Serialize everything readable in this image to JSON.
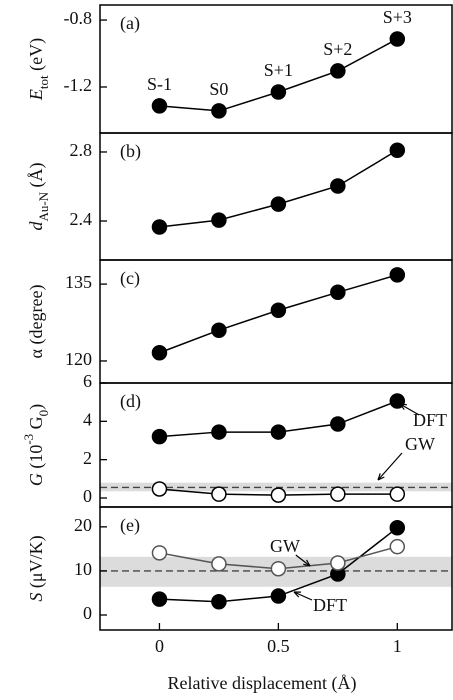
{
  "chart_data": [
    {
      "type": "line",
      "panel_label": "(a)",
      "ylabel": [
        {
          "text": "E",
          "style": "italic"
        },
        {
          "text": "tot",
          "style": "sub"
        },
        {
          "text": " (eV)"
        }
      ],
      "x": [
        0,
        0.25,
        0.5,
        0.75,
        1
      ],
      "xlim": [
        -0.25,
        1.23
      ],
      "ylim": [
        -1.475,
        -0.71
      ],
      "yticks": [
        -1.2,
        -0.8
      ],
      "point_labels": [
        "S-1",
        "S0",
        "S+1",
        "S+2",
        "S+3"
      ],
      "series": [
        {
          "color": "#000000",
          "marker": "filled",
          "values": [
            -1.313,
            -1.343,
            -1.23,
            -1.104,
            -0.913
          ]
        }
      ]
    },
    {
      "type": "line",
      "panel_label": "(b)",
      "ylabel": [
        {
          "text": "d",
          "style": "italic"
        },
        {
          "text": "Au-N",
          "style": "sub"
        },
        {
          "text": " (Å)"
        }
      ],
      "x": [
        0,
        0.25,
        0.5,
        0.75,
        1
      ],
      "xlim": [
        -0.25,
        1.23
      ],
      "ylim": [
        2.174,
        2.91
      ],
      "yticks": [
        2.4,
        2.8
      ],
      "series": [
        {
          "color": "#000000",
          "marker": "filled",
          "values": [
            2.365,
            2.405,
            2.498,
            2.603,
            2.81
          ]
        }
      ]
    },
    {
      "type": "line",
      "panel_label": "(c)",
      "ylabel": [
        {
          "text": "α (degree)"
        }
      ],
      "x": [
        0,
        0.25,
        0.5,
        0.75,
        1
      ],
      "xlim": [
        -0.25,
        1.23
      ],
      "ylim": [
        115.7,
        139.7
      ],
      "yticks": [
        120,
        135
      ],
      "series": [
        {
          "color": "#000000",
          "marker": "filled",
          "values": [
            121.6,
            126.0,
            129.9,
            133.4,
            136.8
          ]
        }
      ]
    },
    {
      "type": "line",
      "panel_label": "(d)",
      "ylabel": [
        {
          "text": "G",
          "style": "italic"
        },
        {
          "text": " (10"
        },
        {
          "text": "-3",
          "style": "sup"
        },
        {
          "text": " G"
        },
        {
          "text": "0",
          "style": "sub"
        },
        {
          "text": ")"
        }
      ],
      "x": [
        0,
        0.25,
        0.5,
        0.75,
        1
      ],
      "xlim": [
        -0.25,
        1.23
      ],
      "ylim": [
        -0.47,
        6
      ],
      "yticks": [
        0,
        2,
        4,
        6
      ],
      "band": [
        0.35,
        0.8
      ],
      "hline": 0.55,
      "series": [
        {
          "name": "DFT",
          "color": "#000000",
          "marker": "filled",
          "values": [
            3.2,
            3.44,
            3.44,
            3.86,
            5.06
          ]
        },
        {
          "name": "GW",
          "color": "#000000",
          "marker": "open",
          "values": [
            0.47,
            0.2,
            0.15,
            0.2,
            0.2
          ]
        }
      ]
    },
    {
      "type": "line",
      "panel_label": "(e)",
      "ylabel": [
        {
          "text": "S",
          "style": "italic"
        },
        {
          "text": " (μV/K)"
        }
      ],
      "x": [
        0,
        0.25,
        0.5,
        0.75,
        1
      ],
      "xlim": [
        -0.25,
        1.23
      ],
      "ylim": [
        -3.4,
        24.5
      ],
      "yticks": [
        0,
        10,
        20
      ],
      "band": [
        6.4,
        13.2
      ],
      "hline": 10,
      "xticks": [
        0,
        0.5,
        1
      ],
      "xlabel": "Relative displacement (Å)",
      "series": [
        {
          "name": "DFT",
          "color": "#000000",
          "marker": "filled",
          "values": [
            3.6,
            3.0,
            4.3,
            9.3,
            19.8
          ]
        },
        {
          "name": "GW",
          "color": "#555555",
          "marker": "open",
          "values": [
            14.1,
            11.6,
            10.5,
            11.8,
            15.5
          ]
        }
      ]
    }
  ]
}
